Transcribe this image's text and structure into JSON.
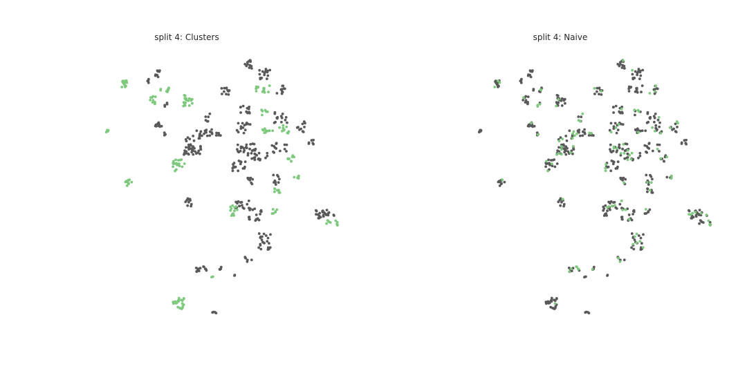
{
  "chart_data": [
    {
      "type": "scatter",
      "title": "split 4: Clusters",
      "xlabel": "",
      "ylabel": "",
      "grid": false,
      "axes_visible": false,
      "colors": {
        "test": "#7fc97f",
        "train": "#595959"
      },
      "mode": "clustered"
    },
    {
      "type": "scatter",
      "title": "split 4: Naive",
      "xlabel": "",
      "ylabel": "",
      "grid": false,
      "axes_visible": false,
      "colors": {
        "test": "#7fc97f",
        "train": "#595959"
      },
      "mode": "random"
    }
  ]
}
